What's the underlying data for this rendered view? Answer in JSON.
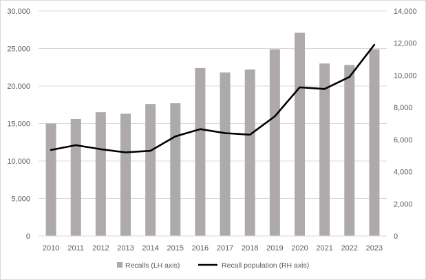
{
  "chart_data": {
    "type": "bar",
    "categories": [
      "2010",
      "2011",
      "2012",
      "2013",
      "2014",
      "2015",
      "2016",
      "2017",
      "2018",
      "2019",
      "2020",
      "2021",
      "2022",
      "2023"
    ],
    "series": [
      {
        "name": "Recalls (LH axis)",
        "type": "bar",
        "axis": "left",
        "color": "#aeaaaa",
        "values": [
          15000,
          15600,
          16500,
          16300,
          17600,
          17700,
          22400,
          21800,
          22200,
          24900,
          27100,
          23000,
          22800,
          24900
        ]
      },
      {
        "name": "Recall population (RH axis)",
        "type": "line",
        "axis": "right",
        "color": "#000000",
        "values": [
          5350,
          5650,
          5400,
          5200,
          5300,
          6200,
          6650,
          6400,
          6300,
          7450,
          9250,
          9150,
          9900,
          11900
        ]
      }
    ],
    "left_axis": {
      "min": 0,
      "max": 30000,
      "ticks": [
        0,
        5000,
        10000,
        15000,
        20000,
        25000,
        30000
      ],
      "tick_labels": [
        "0",
        "5,000",
        "10,000",
        "15,000",
        "20,000",
        "25,000",
        "30,000"
      ]
    },
    "right_axis": {
      "min": 0,
      "max": 14000,
      "ticks": [
        0,
        2000,
        4000,
        6000,
        8000,
        10000,
        12000,
        14000
      ],
      "tick_labels": [
        "0",
        "2,000",
        "4,000",
        "6,000",
        "8,000",
        "10,000",
        "12,000",
        "14,000"
      ]
    },
    "grid": true,
    "legend_position": "bottom",
    "title": "",
    "xlabel": "",
    "ylabel": ""
  }
}
